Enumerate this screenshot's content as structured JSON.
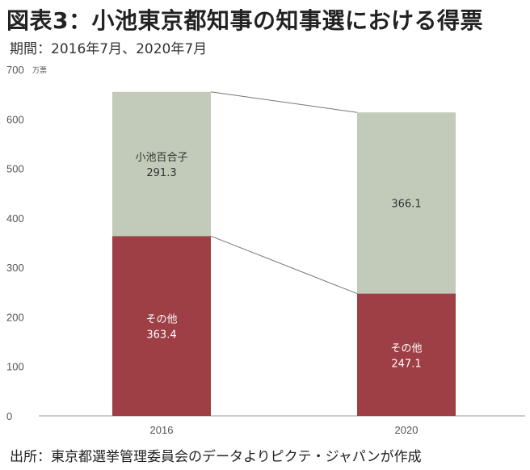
{
  "title": "図表3：小池東京都知事の知事選における得票",
  "subtitle": "期間：2016年7月、2020年7月",
  "source": "出所：東京都選挙管理委員会のデータよりピクテ・ジャパンが作成",
  "chart_data": {
    "type": "bar",
    "stacked": true,
    "categories": [
      "2016",
      "2020"
    ],
    "series": [
      {
        "name": "その他",
        "values": [
          363.4,
          247.1
        ],
        "color": "#9e3e45",
        "label_color": "#ffffff"
      },
      {
        "name": "小池百合子",
        "values": [
          291.3,
          366.1
        ],
        "color": "#c2cbb9",
        "label_color": "#333333"
      }
    ],
    "segment_labels": [
      [
        "その他",
        "その他"
      ],
      [
        "小池百合子",
        ""
      ]
    ],
    "y_unit": "万票",
    "ylim": [
      0,
      700
    ],
    "yticks": [
      0,
      100,
      200,
      300,
      400,
      500,
      600,
      700
    ],
    "connector_lines": true,
    "grid": false
  }
}
